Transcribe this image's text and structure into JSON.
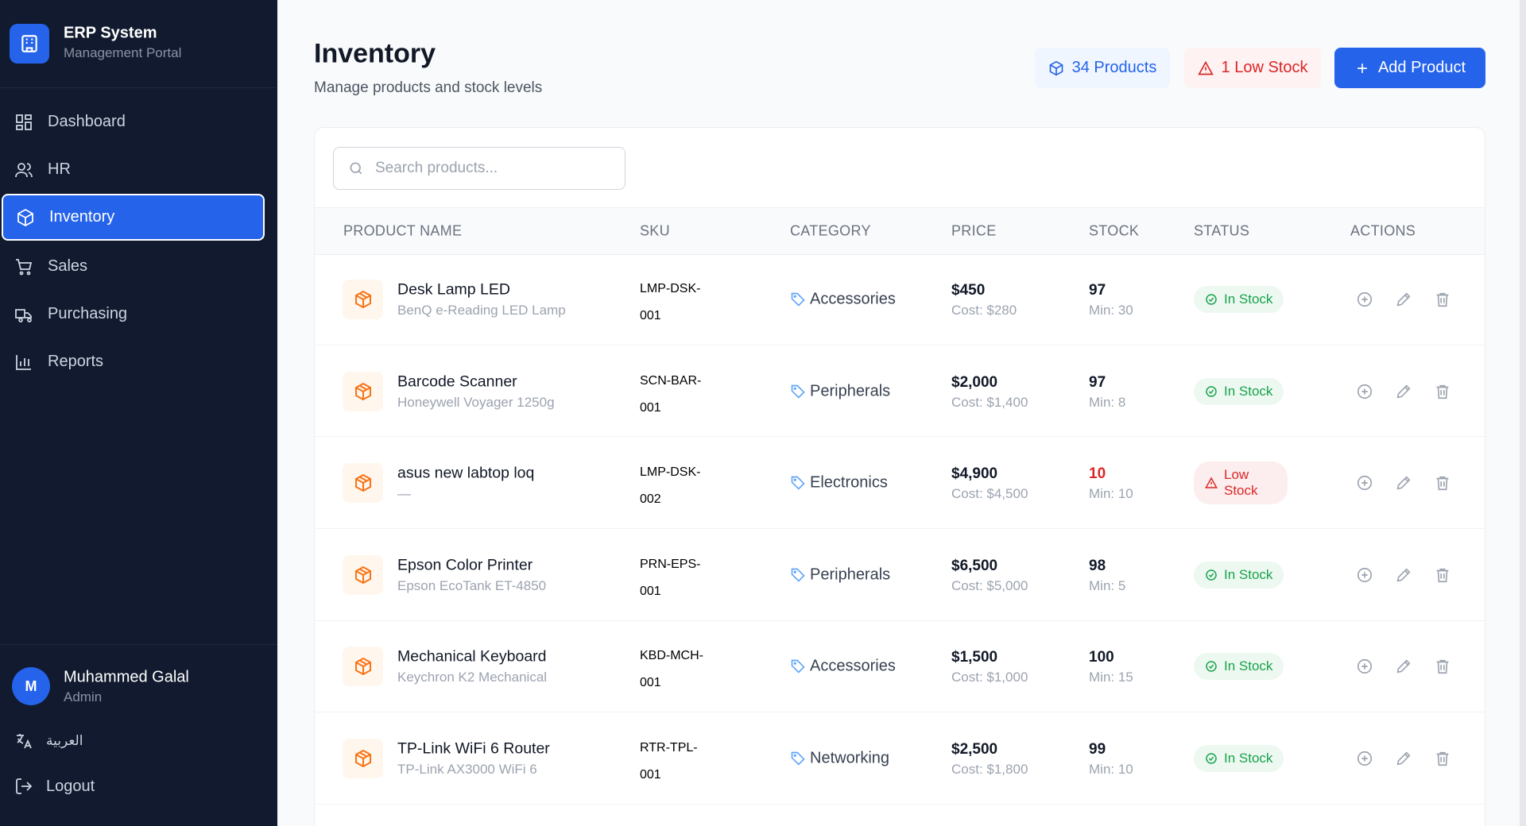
{
  "brand": {
    "title": "ERP System",
    "subtitle": "Management Portal"
  },
  "nav": [
    {
      "label": "Dashboard",
      "active": false
    },
    {
      "label": "HR",
      "active": false
    },
    {
      "label": "Inventory",
      "active": true
    },
    {
      "label": "Sales",
      "active": false
    },
    {
      "label": "Purchasing",
      "active": false
    },
    {
      "label": "Reports",
      "active": false
    }
  ],
  "user": {
    "initial": "M",
    "name": "Muhammed Galal",
    "role": "Admin"
  },
  "language": "العربية",
  "logout": "Logout",
  "header": {
    "title": "Inventory",
    "subtitle": "Manage products and stock levels",
    "products_badge": "34 Products",
    "low_stock_badge": "1 Low Stock",
    "add_button": "Add Product"
  },
  "search_placeholder": "Search products...",
  "table": {
    "columns": [
      "PRODUCT NAME",
      "SKU",
      "CATEGORY",
      "PRICE",
      "STOCK",
      "STATUS",
      "ACTIONS"
    ],
    "rows": [
      {
        "name": "Desk Lamp LED",
        "description": "BenQ e-Reading LED Lamp",
        "sku": [
          "LMP-DSK-",
          "001"
        ],
        "category": "Accessories",
        "price": "$450",
        "cost": "Cost: $280",
        "stock": "97",
        "min": "Min: 30",
        "status": "In Stock",
        "color": "#16a34a"
      },
      {
        "name": "Barcode Scanner",
        "description": "Honeywell Voyager 1250g",
        "sku": [
          "SCN-BAR-",
          "001"
        ],
        "category": "Peripherals",
        "price": "$2,000",
        "cost": "Cost: $1,400",
        "stock": "97",
        "min": "Min: 8",
        "status": "In Stock",
        "color": "#16a34a"
      },
      {
        "name": "asus new labtop loq",
        "description": "—",
        "sku": [
          "LMP-DSK-",
          "002"
        ],
        "category": "Electronics",
        "price": "$4,900",
        "cost": "Cost: $4,500",
        "stock": "10",
        "min": "Min: 10",
        "status": "Low Stock",
        "color": "#dc2626"
      },
      {
        "name": "Epson Color Printer",
        "description": "Epson EcoTank ET-4850",
        "sku": [
          "PRN-EPS-",
          "001"
        ],
        "category": "Peripherals",
        "price": "$6,500",
        "cost": "Cost: $5,000",
        "stock": "98",
        "min": "Min: 5",
        "status": "In Stock",
        "color": "#16a34a"
      },
      {
        "name": "Mechanical Keyboard",
        "description": "Keychron K2 Mechanical",
        "sku": [
          "KBD-MCH-",
          "001"
        ],
        "category": "Accessories",
        "price": "$1,500",
        "cost": "Cost: $1,000",
        "stock": "100",
        "min": "Min: 15",
        "status": "In Stock",
        "color": "#16a34a"
      },
      {
        "name": "TP-Link WiFi 6 Router",
        "description": "TP-Link AX3000 WiFi 6",
        "sku": [
          "RTR-TPL-",
          "001"
        ],
        "category": "Networking",
        "price": "$2,500",
        "cost": "Cost: $1,800",
        "stock": "99",
        "min": "Min: 10",
        "status": "In Stock",
        "color": "#16a34a"
      }
    ]
  }
}
